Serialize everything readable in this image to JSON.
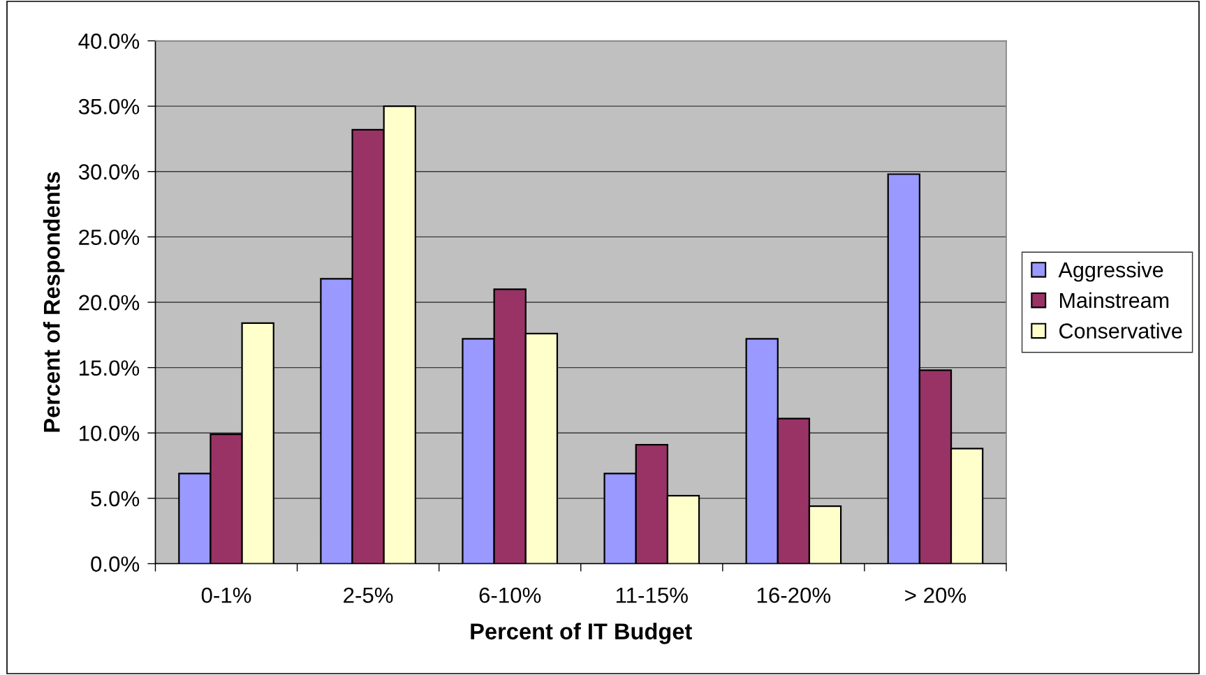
{
  "chart_data": {
    "type": "bar",
    "xlabel": "Percent of IT Budget",
    "ylabel": "Percent of Respondents",
    "categories": [
      "0-1%",
      "2-5%",
      "6-10%",
      "11-15%",
      "16-20%",
      "> 20%"
    ],
    "series": [
      {
        "name": "Aggressive",
        "color": "#9999ff",
        "values": [
          6.9,
          21.8,
          17.2,
          6.9,
          17.2,
          29.8
        ]
      },
      {
        "name": "Mainstream",
        "color": "#993366",
        "values": [
          9.9,
          33.2,
          21.0,
          9.1,
          11.1,
          14.8
        ]
      },
      {
        "name": "Conservative",
        "color": "#ffffcc",
        "values": [
          18.4,
          35.0,
          17.6,
          5.2,
          4.4,
          8.8
        ]
      }
    ],
    "ylim": [
      0,
      40
    ],
    "yticks": [
      {
        "value": 0,
        "label": "0.0%"
      },
      {
        "value": 5,
        "label": "5.0%"
      },
      {
        "value": 10,
        "label": "10.0%"
      },
      {
        "value": 15,
        "label": "15.0%"
      },
      {
        "value": 20,
        "label": "20.0%"
      },
      {
        "value": 25,
        "label": "25.0%"
      },
      {
        "value": 30,
        "label": "30.0%"
      },
      {
        "value": 35,
        "label": "35.0%"
      },
      {
        "value": 40,
        "label": "40.0%"
      }
    ],
    "grid": "y",
    "legend": "right"
  }
}
